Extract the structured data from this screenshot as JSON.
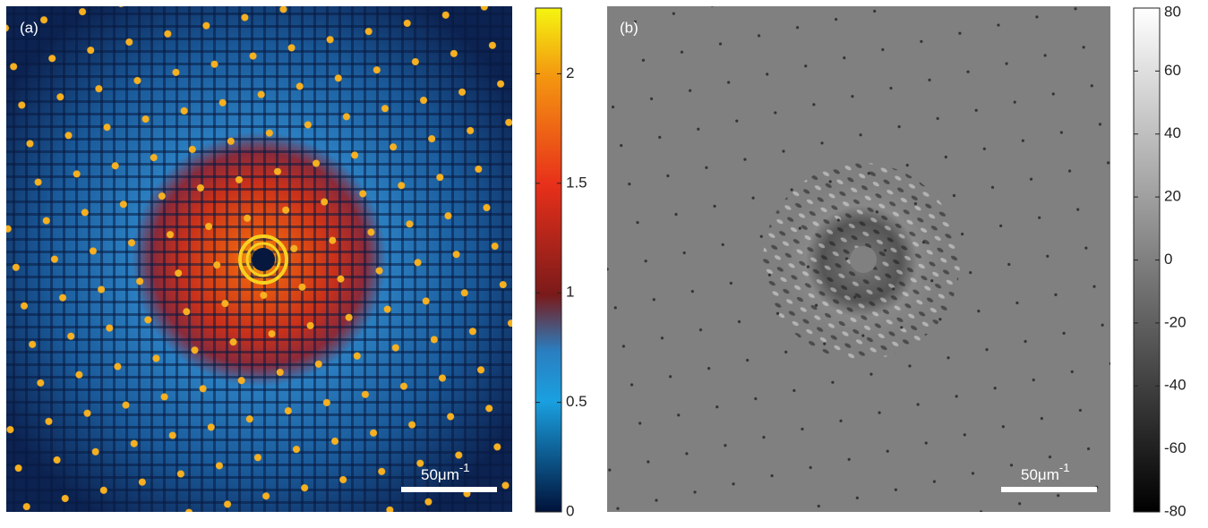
{
  "panels": [
    {
      "label": "(a)",
      "scale_bar": {
        "text": "50μm",
        "superscript": "-1"
      },
      "colorbar": {
        "clim": [
          0,
          2.3
        ],
        "ticks": [
          0,
          0.5,
          1,
          1.5,
          2
        ]
      }
    },
    {
      "label": "(b)",
      "scale_bar": {
        "text": "50μm",
        "superscript": "-1"
      },
      "colorbar": {
        "clim": [
          -80,
          80
        ],
        "ticks": [
          -80,
          -60,
          -40,
          -20,
          0,
          20,
          40,
          60,
          80
        ]
      }
    }
  ]
}
